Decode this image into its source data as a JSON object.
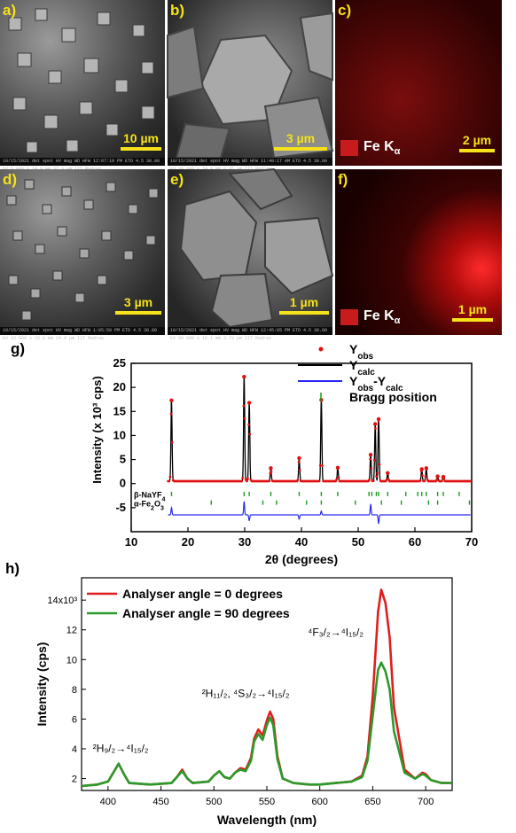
{
  "figure": {
    "panels": [
      {
        "id": "a",
        "label": "a)",
        "scale": "10 µm",
        "meta": "10/15/2021  det  spot   HV   mag    WD   HFW  12:07:19 PM ETD 4.5 30.00 kV 8 000 x 14.8 mm 37.3 µm   IIT Madras"
      },
      {
        "id": "b",
        "label": "b)",
        "scale": "3 µm",
        "meta": "10/15/2021  det  spot   HV   mag    WD   HFW  11:40:17 AM ETD 4.5 30.00 kV 30 000 x 24.9 mm 9.95 µm   IIT Madras"
      },
      {
        "id": "c",
        "label": "c)",
        "scale": "2 µm",
        "legend": "Fe K",
        "legend_sub": "α"
      },
      {
        "id": "d",
        "label": "d)",
        "scale": "3 µm",
        "meta": "10/15/2021  det  spot   HV   mag    WD   HFW  1:05:50 PM ETD 4.5 30.00 kV 12 000 x 15.1 mm 24.9 µm   IIT Madras"
      },
      {
        "id": "e",
        "label": "e)",
        "scale": "1 µm",
        "meta": "10/15/2021  det  spot   HV   mag    WD   HFW  12:45:05 PM ETD 4.5 30.00 kV 80 000 x 15.1 mm 3.73 µm   IIT Madras"
      },
      {
        "id": "f",
        "label": "f)",
        "scale": "1 µm",
        "legend": "Fe K",
        "legend_sub": "α"
      }
    ],
    "g_label": "g)",
    "h_label": "h)"
  },
  "chart_data": [
    {
      "type": "line",
      "id": "g",
      "xlabel": "2θ (degrees)",
      "ylabel": "Intensity (x 10³ cps)",
      "xlim": [
        10,
        70
      ],
      "ylim": [
        -10,
        25
      ],
      "xticks": [
        10,
        20,
        30,
        40,
        50,
        60,
        70
      ],
      "yticks": [
        -5,
        0,
        5,
        10,
        15,
        20,
        25
      ],
      "legend": {
        "placement": "top-right",
        "entries": [
          {
            "label": "Y",
            "sub": "obs",
            "color": "#e01010",
            "style": "dots"
          },
          {
            "label": "Y",
            "sub": "calc",
            "color": "#000000",
            "style": "line"
          },
          {
            "label": "Y",
            "sub": "obs",
            "label2": "-Y",
            "sub2": "calc",
            "color": "#2a2af0",
            "style": "line"
          },
          {
            "label": "Bragg position",
            "color": "#1a9a1a",
            "style": "tick"
          }
        ]
      },
      "peaks": [
        {
          "x": 17.1,
          "y": 17.3
        },
        {
          "x": 29.9,
          "y": 22.2
        },
        {
          "x": 30.8,
          "y": 16.8
        },
        {
          "x": 34.6,
          "y": 3.2
        },
        {
          "x": 39.6,
          "y": 5.3
        },
        {
          "x": 43.5,
          "y": 17.4
        },
        {
          "x": 46.4,
          "y": 3.3
        },
        {
          "x": 52.2,
          "y": 6.0
        },
        {
          "x": 53.0,
          "y": 12.4
        },
        {
          "x": 53.6,
          "y": 13.4
        },
        {
          "x": 55.2,
          "y": 2.2
        },
        {
          "x": 61.2,
          "y": 3.0
        },
        {
          "x": 62.0,
          "y": 3.2
        },
        {
          "x": 64.0,
          "y": 1.5
        },
        {
          "x": 65.0,
          "y": 1.4
        }
      ],
      "baseline": 0.5,
      "phase_labels": [
        {
          "label": "β-NaYF",
          "sub": "4"
        },
        {
          "label": "α-Fe",
          "sub": "2",
          "label2": "O",
          "sub2": "3"
        }
      ],
      "bragg_naYF4": [
        17.1,
        29.9,
        30.8,
        34.6,
        39.6,
        43.5,
        46.4,
        51.9,
        52.4,
        53.2,
        53.6,
        55.2,
        58.4,
        60.5,
        61.2,
        62.0,
        64.0,
        65.0,
        67.8
      ],
      "bragg_fe2o3": [
        24.1,
        33.2,
        35.6,
        40.9,
        43.5,
        49.5,
        54.1,
        57.6,
        62.4,
        64.0,
        69.6
      ],
      "diff_baseline": -6.5,
      "diff_features": [
        {
          "x": 17.1,
          "d": 1.5
        },
        {
          "x": 29.9,
          "d": 2.8
        },
        {
          "x": 30.8,
          "d": -1.2
        },
        {
          "x": 39.6,
          "d": -0.9
        },
        {
          "x": 43.5,
          "d": 0.8
        },
        {
          "x": 52.2,
          "d": 2.2
        },
        {
          "x": 53.6,
          "d": -1.8
        }
      ]
    },
    {
      "type": "line",
      "id": "h",
      "xlabel": "Wavelength (nm)",
      "ylabel": "Intensity (cps)",
      "xlim": [
        375,
        725
      ],
      "ylim": [
        1.2,
        15.5
      ],
      "xticks": [
        400,
        450,
        500,
        550,
        600,
        650,
        700
      ],
      "yticks": [
        2,
        4,
        6,
        8,
        10,
        12,
        14
      ],
      "ytick_top_label": "14x10³",
      "series": [
        {
          "name": "Analyser angle = 0 degrees",
          "color": "#e01e1e",
          "x": [
            375,
            390,
            400,
            405,
            410,
            415,
            420,
            440,
            460,
            465,
            470,
            475,
            480,
            495,
            500,
            505,
            510,
            515,
            520,
            525,
            530,
            535,
            538,
            542,
            546,
            550,
            553,
            556,
            560,
            565,
            575,
            590,
            600,
            615,
            630,
            640,
            645,
            650,
            655,
            658,
            662,
            666,
            670,
            680,
            690,
            697,
            700,
            705,
            715,
            725
          ],
          "y": [
            1.5,
            1.6,
            1.8,
            2.4,
            3.0,
            2.3,
            1.7,
            1.6,
            1.7,
            2.1,
            2.6,
            2.0,
            1.7,
            1.8,
            2.2,
            2.5,
            2.1,
            2.0,
            2.4,
            2.7,
            2.6,
            3.4,
            4.7,
            5.3,
            4.9,
            5.9,
            6.5,
            6.0,
            3.5,
            2.0,
            1.7,
            1.6,
            1.6,
            1.7,
            1.8,
            2.2,
            3.5,
            7.5,
            13.2,
            14.7,
            13.8,
            11.5,
            6.8,
            2.6,
            2.0,
            2.4,
            2.3,
            1.9,
            1.7,
            1.7
          ]
        },
        {
          "name": "Analyser angle = 90 degrees",
          "color": "#2a9a2a",
          "x": [
            375,
            390,
            400,
            405,
            410,
            415,
            420,
            440,
            460,
            465,
            470,
            475,
            480,
            495,
            500,
            505,
            510,
            515,
            520,
            525,
            530,
            535,
            538,
            542,
            546,
            550,
            553,
            556,
            560,
            565,
            575,
            590,
            600,
            615,
            630,
            640,
            645,
            650,
            655,
            658,
            662,
            666,
            670,
            680,
            690,
            697,
            700,
            705,
            715,
            725
          ],
          "y": [
            1.5,
            1.6,
            1.8,
            2.4,
            3.0,
            2.3,
            1.7,
            1.6,
            1.7,
            2.1,
            2.5,
            2.0,
            1.7,
            1.8,
            2.2,
            2.5,
            2.1,
            2.0,
            2.4,
            2.6,
            2.5,
            3.2,
            4.5,
            5.0,
            4.6,
            5.6,
            6.1,
            5.6,
            3.3,
            2.0,
            1.7,
            1.6,
            1.6,
            1.7,
            1.8,
            2.1,
            3.2,
            6.2,
            9.3,
            9.8,
            9.2,
            8.0,
            5.2,
            2.4,
            2.0,
            2.3,
            2.2,
            1.9,
            1.7,
            1.7
          ]
        }
      ],
      "annotations": [
        {
          "x": 412,
          "y": 3.8,
          "text": "²H₉/₂→⁴I₁₅/₂"
        },
        {
          "x": 530,
          "y": 7.5,
          "text": "²H₁₁/₂, ⁴S₃/₂→⁴I₁₅/₂"
        },
        {
          "x": 615,
          "y": 11.6,
          "text": "⁴F₃/₂→⁴I₁₅/₂"
        }
      ]
    }
  ]
}
